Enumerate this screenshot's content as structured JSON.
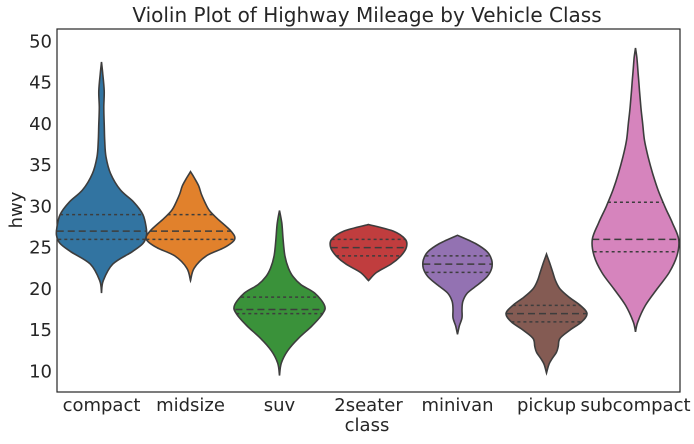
{
  "chart_data": {
    "type": "violin",
    "title": "Violin Plot of Highway Mileage by Vehicle Class",
    "xlabel": "class",
    "ylabel": "hwy",
    "ylim": [
      7.5,
      51.5
    ],
    "yticks": [
      10,
      15,
      20,
      25,
      30,
      35,
      40,
      45,
      50
    ],
    "grid": false,
    "inner": "quartile",
    "categories": [
      "compact",
      "midsize",
      "suv",
      "2seater",
      "minivan",
      "pickup",
      "subcompact"
    ],
    "series": [
      {
        "category": "compact",
        "color": "#3274a1",
        "quartiles": [
          26,
          27,
          29
        ],
        "density": [
          [
            19.5,
            0
          ],
          [
            21,
            0.04
          ],
          [
            23,
            0.25
          ],
          [
            24.5,
            0.68
          ],
          [
            25.5,
            0.92
          ],
          [
            26.5,
            1.0
          ],
          [
            27.5,
            0.99
          ],
          [
            29,
            0.92
          ],
          [
            30.5,
            0.72
          ],
          [
            32,
            0.42
          ],
          [
            34,
            0.2
          ],
          [
            36,
            0.1
          ],
          [
            38,
            0.07
          ],
          [
            40,
            0.06
          ],
          [
            42,
            0.05
          ],
          [
            44,
            0.06
          ],
          [
            46,
            0.03
          ],
          [
            47.5,
            0
          ]
        ]
      },
      {
        "category": "midsize",
        "color": "#e1812c",
        "quartiles": [
          26,
          27,
          29
        ],
        "density": [
          [
            21,
            0
          ],
          [
            22.5,
            0.08
          ],
          [
            24,
            0.35
          ],
          [
            25,
            0.75
          ],
          [
            26,
            0.98
          ],
          [
            27,
            0.9
          ],
          [
            28.5,
            0.6
          ],
          [
            29.5,
            0.42
          ],
          [
            30.5,
            0.32
          ],
          [
            31.5,
            0.24
          ],
          [
            32.5,
            0.18
          ],
          [
            33.5,
            0.08
          ],
          [
            34.2,
            0
          ]
        ]
      },
      {
        "category": "suv",
        "color": "#3a923a",
        "quartiles": [
          17,
          17.5,
          19
        ],
        "density": [
          [
            9.5,
            0
          ],
          [
            11,
            0.04
          ],
          [
            12.5,
            0.18
          ],
          [
            14,
            0.42
          ],
          [
            15.5,
            0.72
          ],
          [
            17,
            0.96
          ],
          [
            18,
            1.0
          ],
          [
            19.5,
            0.78
          ],
          [
            20.5,
            0.48
          ],
          [
            21.5,
            0.3
          ],
          [
            22.5,
            0.2
          ],
          [
            24,
            0.12
          ],
          [
            26,
            0.08
          ],
          [
            28,
            0.05
          ],
          [
            29.5,
            0
          ]
        ]
      },
      {
        "category": "2seater",
        "color": "#c03d3e",
        "quartiles": [
          24,
          25,
          26
        ],
        "density": [
          [
            21,
            0
          ],
          [
            22,
            0.18
          ],
          [
            23,
            0.5
          ],
          [
            24,
            0.72
          ],
          [
            25,
            0.84
          ],
          [
            26,
            0.82
          ],
          [
            27,
            0.55
          ],
          [
            27.8,
            0
          ]
        ]
      },
      {
        "category": "minivan",
        "color": "#9372b2",
        "quartiles": [
          22,
          23,
          24
        ],
        "density": [
          [
            14.5,
            0
          ],
          [
            15.5,
            0.04
          ],
          [
            16.5,
            0.1
          ],
          [
            17.5,
            0.1
          ],
          [
            18.5,
            0.12
          ],
          [
            19.5,
            0.22
          ],
          [
            20.5,
            0.45
          ],
          [
            21.5,
            0.66
          ],
          [
            22.5,
            0.76
          ],
          [
            23.5,
            0.76
          ],
          [
            24.5,
            0.66
          ],
          [
            25.5,
            0.4
          ],
          [
            26.5,
            0
          ]
        ]
      },
      {
        "category": "pickup",
        "color": "#845b53",
        "quartiles": [
          16,
          17,
          18
        ],
        "density": [
          [
            9.8,
            0
          ],
          [
            10.8,
            0.05
          ],
          [
            11.5,
            0.12
          ],
          [
            12.3,
            0.22
          ],
          [
            13,
            0.26
          ],
          [
            14,
            0.3
          ],
          [
            15,
            0.52
          ],
          [
            16,
            0.78
          ],
          [
            17,
            0.9
          ],
          [
            18,
            0.75
          ],
          [
            19,
            0.5
          ],
          [
            20,
            0.3
          ],
          [
            21,
            0.2
          ],
          [
            22,
            0.14
          ],
          [
            23,
            0.08
          ],
          [
            24.2,
            0
          ]
        ]
      },
      {
        "category": "subcompact",
        "color": "#d684bd",
        "quartiles": [
          24.5,
          26,
          30.5
        ],
        "density": [
          [
            14.8,
            0
          ],
          [
            16,
            0.05
          ],
          [
            18,
            0.22
          ],
          [
            20,
            0.48
          ],
          [
            22,
            0.75
          ],
          [
            24,
            0.92
          ],
          [
            26,
            0.96
          ],
          [
            28,
            0.82
          ],
          [
            30,
            0.65
          ],
          [
            32,
            0.5
          ],
          [
            34,
            0.38
          ],
          [
            36,
            0.28
          ],
          [
            38,
            0.2
          ],
          [
            40,
            0.16
          ],
          [
            42,
            0.12
          ],
          [
            44,
            0.09
          ],
          [
            46,
            0.06
          ],
          [
            48,
            0.03
          ],
          [
            49.2,
            0
          ]
        ]
      }
    ]
  }
}
